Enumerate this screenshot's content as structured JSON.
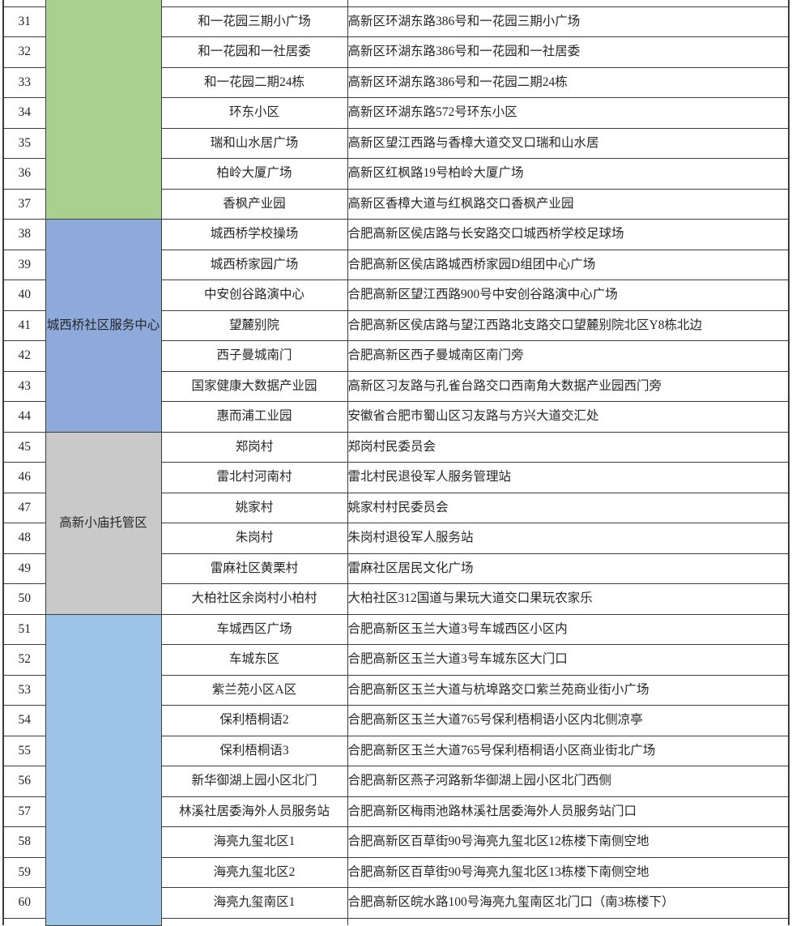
{
  "table": {
    "sections": [
      {
        "label": "",
        "color": "#a9d08e",
        "partial_row_above": true,
        "rows": [
          {
            "num": "31",
            "name": "和一花园三期小广场",
            "address": "高新区环湖东路386号和一花园三期小广场"
          },
          {
            "num": "32",
            "name": "和一花园和一社居委",
            "address": "高新区环湖东路386号和一花园和一社居委"
          },
          {
            "num": "33",
            "name": "和一花园二期24栋",
            "address": "高新区环湖东路386号和一花园二期24栋"
          },
          {
            "num": "34",
            "name": "环东小区",
            "address": "高新区环湖东路572号环东小区"
          },
          {
            "num": "35",
            "name": "瑞和山水居广场",
            "address": "高新区望江西路与香樟大道交叉口瑞和山水居"
          },
          {
            "num": "36",
            "name": "柏岭大厦广场",
            "address": "高新区红枫路19号柏岭大厦广场"
          },
          {
            "num": "37",
            "name": "香枫产业园",
            "address": "高新区香樟大道与红枫路交口香枫产业园"
          }
        ]
      },
      {
        "label": "城西桥社区服务中心",
        "color": "#8eaadb",
        "rows": [
          {
            "num": "38",
            "name": "城西桥学校操场",
            "address": "合肥高新区侯店路与长安路交口城西桥学校足球场"
          },
          {
            "num": "39",
            "name": "城西桥家园广场",
            "address": "合肥高新区侯店路城西桥家园D组团中心广场"
          },
          {
            "num": "40",
            "name": "中安创谷路演中心",
            "address": "合肥高新区望江西路900号中安创谷路演中心广场"
          },
          {
            "num": "41",
            "name": "望麓别院",
            "address": "合肥高新区侯店路与望江西路北支路交口望麓别院北区Y8栋北边"
          },
          {
            "num": "42",
            "name": "西子曼城南门",
            "address": "合肥高新区西子曼城南区南门旁"
          },
          {
            "num": "43",
            "name": "国家健康大数据产业园",
            "address": "高新区习友路与孔雀台路交口西南角大数据产业园西门旁"
          },
          {
            "num": "44",
            "name": "惠而浦工业园",
            "address": "安徽省合肥市蜀山区习友路与方兴大道交汇处"
          }
        ]
      },
      {
        "label": "高新小庙托管区",
        "color": "#c9c9c9",
        "rows": [
          {
            "num": "45",
            "name": "郑岗村",
            "address": "郑岗村民委员会"
          },
          {
            "num": "46",
            "name": "雷北村河南村",
            "address": "雷北村民退役军人服务管理站"
          },
          {
            "num": "47",
            "name": "姚家村",
            "address": "姚家村村民委员会"
          },
          {
            "num": "48",
            "name": "朱岗村",
            "address": "朱岗村退役军人服务站"
          },
          {
            "num": "49",
            "name": "雷麻社区黄栗村",
            "address": "雷麻社区居民文化广场"
          },
          {
            "num": "50",
            "name": "大柏社区余岗村小柏村",
            "address": "大柏社区312国道与果玩大道交口果玩农家乐"
          }
        ]
      },
      {
        "label": "",
        "color": "#9dc3e6",
        "partial_row_below": true,
        "rows": [
          {
            "num": "51",
            "name": "车城西区广场",
            "address": "合肥高新区玉兰大道3号车城西区小区内"
          },
          {
            "num": "52",
            "name": "车城东区",
            "address": "合肥高新区玉兰大道3号车城东区大门口"
          },
          {
            "num": "53",
            "name": "紫兰苑小区A区",
            "address": "合肥高新区玉兰大道与杭埠路交口紫兰苑商业街小广场"
          },
          {
            "num": "54",
            "name": "保利梧桐语2",
            "address": "合肥高新区玉兰大道765号保利梧桐语小区内北侧凉亭"
          },
          {
            "num": "55",
            "name": "保利梧桐语3",
            "address": "合肥高新区玉兰大道765号保利梧桐语小区商业街北广场"
          },
          {
            "num": "56",
            "name": "新华御湖上园小区北门",
            "address": "合肥高新区燕子河路新华御湖上园小区北门西侧"
          },
          {
            "num": "57",
            "name": "林溪社居委海外人员服务站",
            "address": "合肥高新区梅雨池路林溪社居委海外人员服务站门口"
          },
          {
            "num": "58",
            "name": "海亮九玺北区1",
            "address": "合肥高新区百草街90号海亮九玺北区12栋楼下南侧空地"
          },
          {
            "num": "59",
            "name": "海亮九玺北区2",
            "address": "合肥高新区百草街90号海亮九玺北区13栋楼下南侧空地"
          },
          {
            "num": "60",
            "name": "海亮九玺南区1",
            "address": "合肥高新区皖水路100号海亮九玺南区北门口（南3栋楼下）"
          }
        ]
      }
    ]
  }
}
